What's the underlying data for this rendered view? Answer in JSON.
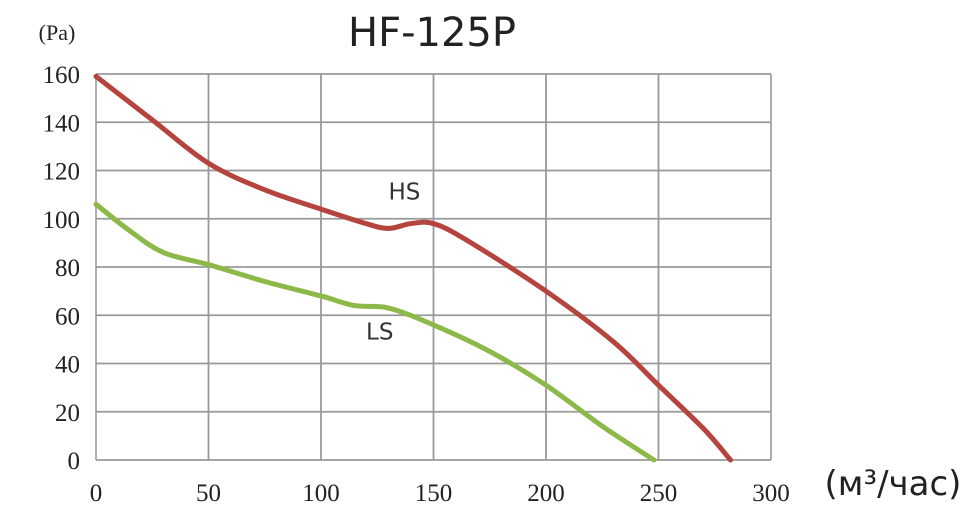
{
  "chart_data": {
    "type": "line",
    "title": "HF-125P",
    "ylabel": "(Pa)",
    "xlabel": "(м³/час)",
    "xlim": [
      0,
      300
    ],
    "ylim": [
      0,
      160
    ],
    "x_ticks": [
      0,
      50,
      100,
      150,
      200,
      250,
      300
    ],
    "y_ticks": [
      0,
      20,
      40,
      60,
      80,
      100,
      120,
      140,
      160
    ],
    "grid": true,
    "series": [
      {
        "name": "HS",
        "color": "#b5433e",
        "x": [
          0,
          25,
          50,
          75,
          100,
          120,
          130,
          140,
          150,
          165,
          200,
          230,
          250,
          270,
          282
        ],
        "y": [
          159,
          141,
          123,
          112,
          104,
          98,
          96,
          98,
          98,
          91,
          70,
          49,
          31,
          13,
          0
        ]
      },
      {
        "name": "LS",
        "color": "#8db84a",
        "x": [
          0,
          15,
          30,
          50,
          75,
          100,
          115,
          130,
          150,
          175,
          200,
          225,
          248
        ],
        "y": [
          106,
          95,
          86,
          81,
          74,
          68,
          64,
          63,
          56,
          45,
          31,
          14,
          0
        ]
      }
    ],
    "annotations": [
      {
        "text": "HS",
        "x": 130,
        "y": 108
      },
      {
        "text": "LS",
        "x": 120,
        "y": 50
      }
    ]
  }
}
